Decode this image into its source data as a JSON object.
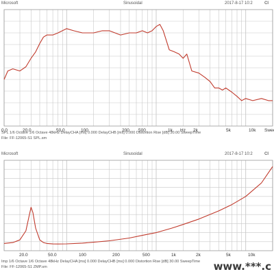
{
  "colors": {
    "curve": "#c0392b",
    "grid": "#c8c8c8",
    "frame": "#999999"
  },
  "chart_data": [
    {
      "type": "line",
      "header": {
        "left": "Microsoft",
        "center": "Sinusoidal",
        "right": "2017-8-17 10:2",
        "badge": "CI"
      },
      "xscale": "log",
      "xlim": [
        20,
        20000
      ],
      "x_tick_labels": [
        "0.0",
        "20.0",
        "50.0",
        "100",
        "200",
        "500",
        "1k",
        "Hz",
        "2k",
        "5k",
        "10k",
        "SweepTime"
      ],
      "footer": [
        "SPL    1/6 Octave   1/6 Octave   48kHz   DelayCHA [ms] 0.000    DelayCHB [ms] 0.000    Distortion Rise [dB] 30.00    SweepTime",
        "File: FF-12065-S1 SPL.sm"
      ],
      "series": [
        {
          "x": [
            20,
            22,
            25,
            30,
            35,
            40,
            45,
            50,
            55,
            60,
            70,
            80,
            100,
            120,
            150,
            200,
            250,
            300,
            400,
            500,
            600,
            700,
            800,
            900,
            1000,
            1100,
            1200,
            1400,
            1600,
            1800,
            2000,
            2200,
            2500,
            3000,
            3500,
            4000,
            4500,
            5000,
            5500,
            6000,
            7000,
            8000,
            9000,
            10000,
            12000,
            15000,
            18000,
            20000
          ],
          "y": [
            62,
            66,
            67,
            66,
            68,
            72,
            75,
            79,
            82,
            83,
            83,
            84,
            86,
            85,
            84,
            84,
            85,
            85,
            83,
            84,
            84,
            85,
            84,
            85,
            87,
            88,
            85,
            76,
            75,
            74,
            72,
            74,
            66,
            65,
            63,
            61,
            58,
            58,
            57,
            58,
            56,
            54,
            52,
            53,
            52,
            53,
            52,
            52
          ]
        }
      ],
      "ylim": [
        40,
        95
      ]
    },
    {
      "type": "line",
      "header": {
        "left": "Microsoft",
        "center": "Sinusoidal",
        "right": "2017-8-17 10:2",
        "badge": "CI"
      },
      "xscale": "log",
      "xlim": [
        20,
        20000
      ],
      "x_tick_labels": [
        "20.0",
        "50.0",
        "100",
        "200",
        "500",
        "1k",
        "2k",
        "5k",
        "10k"
      ],
      "footer": [
        "Imp    1/6 Octave   1/6 Octave   48kHz   DelayCHA [ms] 0.000    DelayCHB [ms] 0.000    Distortion Rise [dB] 30.00    SweepTime",
        "File: FF-12065-S1 ZMP.sm"
      ],
      "series": [
        {
          "x": [
            20,
            25,
            30,
            35,
            38,
            40,
            42,
            45,
            50,
            55,
            60,
            70,
            80,
            100,
            150,
            200,
            300,
            500,
            700,
            1000,
            1500,
            2000,
            3000,
            5000,
            7000,
            10000,
            15000,
            20000
          ],
          "y": [
            8,
            9,
            12,
            22,
            38,
            48,
            42,
            25,
            12,
            9,
            8,
            7.5,
            7.4,
            7.6,
            8.4,
            9.4,
            11,
            14,
            17,
            20,
            25,
            29,
            35,
            44,
            51,
            60,
            75,
            93
          ]
        }
      ],
      "ylim": [
        0,
        100
      ]
    }
  ],
  "watermark": "www.***.c"
}
